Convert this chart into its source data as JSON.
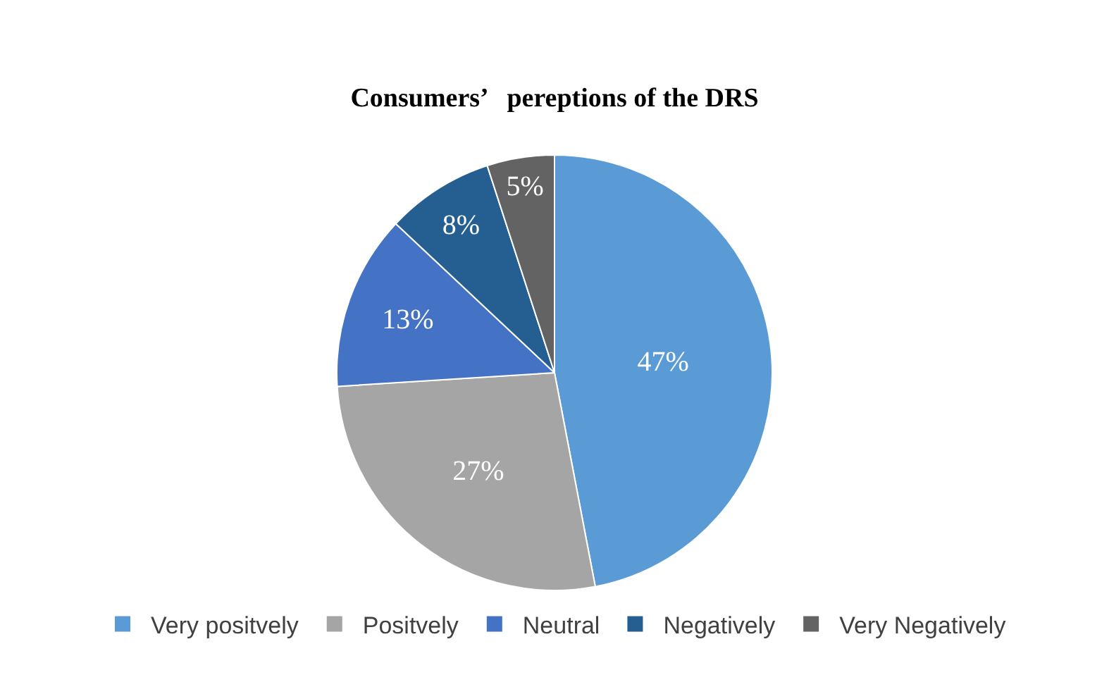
{
  "chart_data": {
    "type": "pie",
    "title": "Consumers’   pereptions of the DRS",
    "categories": [
      "Very positvely",
      "Positvely",
      "Neutral",
      "Negatively",
      "Very Negatively"
    ],
    "values": [
      47,
      27,
      13,
      8,
      5
    ],
    "value_labels": [
      "47%",
      "27%",
      "13%",
      "8%",
      "5%"
    ],
    "colors": [
      "#5b9bd5",
      "#a5a5a5",
      "#4472c4",
      "#255e91",
      "#636363"
    ],
    "legend": "bottom"
  }
}
